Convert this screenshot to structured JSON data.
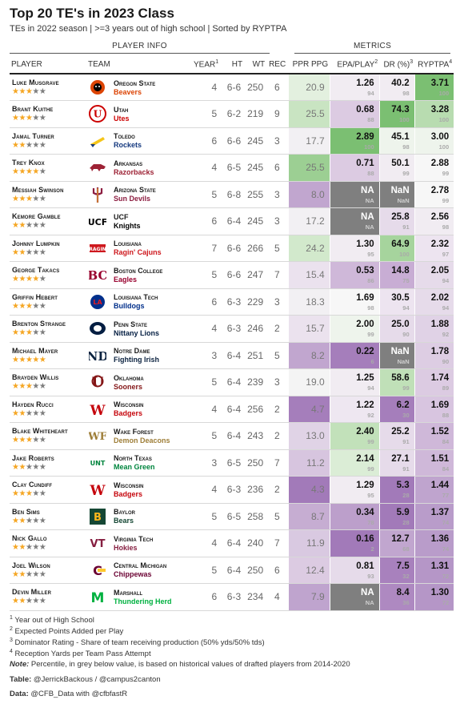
{
  "title": "Top 20 TE's in 2023 Class",
  "subtitle": "TEs in 2022 season | >=3 years out of high school | Sorted by RYPTPA",
  "spanners": {
    "player_info": "PLAYER INFO",
    "metrics": "METRICS"
  },
  "columns": {
    "player": "PLAYER",
    "team": "TEAM",
    "year": "YEAR",
    "year_sup": "1",
    "ht": "HT",
    "wt": "WT",
    "rec": "REC",
    "ppr": "PPR PPG",
    "epa": "EPA/PLAY",
    "epa_sup": "2",
    "dr": "DR (%)",
    "dr_sup": "3",
    "ryptpa": "RYPTPA",
    "ryptpa_sup": "4"
  },
  "colors": {
    "star_on": "#f5a623",
    "star_off": "#7d7d7d",
    "header_rule": "#222222",
    "na_fill": "#7f7f7f"
  },
  "players": [
    {
      "name": "Luke Musgrave",
      "stars": 3,
      "team": "Oregon State",
      "mascot": "Beavers",
      "mascot_color": "#dc4405",
      "logo": "beaver-logo",
      "logo_color": "#dc4405",
      "year": "4",
      "ht": "6-6",
      "wt": "250",
      "rec": "6",
      "ppr": "20.9",
      "ppr_bg": "#e3f0df",
      "epa": "1.26",
      "epa_p": "94",
      "epa_bg": "#f1ecf2",
      "dr": "40.2",
      "dr_p": "98",
      "dr_bg": "#f1ecf2",
      "ryptpa": "3.71",
      "ryptpa_p": "100",
      "ryptpa_bg": "#7bbf72"
    },
    {
      "name": "Brant Kuithe",
      "stars": 3,
      "team": "Utah",
      "mascot": "Utes",
      "mascot_color": "#cc0000",
      "logo": "utah-u-logo",
      "logo_color": "#cc0000",
      "year": "5",
      "ht": "6-2",
      "wt": "219",
      "rec": "9",
      "ppr": "25.5",
      "ppr_bg": "#c9e4c2",
      "epa": "0.68",
      "epa_p": "88",
      "epa_bg": "#dccbe2",
      "dr": "74.3",
      "dr_p": "100",
      "dr_bg": "#7bbf72",
      "ryptpa": "3.28",
      "ryptpa_p": "100",
      "ryptpa_bg": "#b8dcb0"
    },
    {
      "name": "Jamal Turner",
      "stars": 2,
      "team": "Toledo",
      "mascot": "Rockets",
      "mascot_color": "#15397f",
      "logo": "rocket-logo",
      "logo_color": "#f5c518",
      "year": "6",
      "ht": "6-6",
      "wt": "245",
      "rec": "3",
      "ppr": "17.7",
      "ppr_bg": "#f2f0f3",
      "epa": "2.89",
      "epa_p": "100",
      "epa_bg": "#7bbf72",
      "dr": "45.1",
      "dr_p": "98",
      "dr_bg": "#eef4ec",
      "ryptpa": "3.00",
      "ryptpa_p": "100",
      "ryptpa_bg": "#eef4ec"
    },
    {
      "name": "Trey Knox",
      "stars": 4,
      "team": "Arkansas",
      "mascot": "Razorbacks",
      "mascot_color": "#9d2235",
      "logo": "hog-logo",
      "logo_color": "#9d2235",
      "year": "4",
      "ht": "6-5",
      "wt": "245",
      "rec": "6",
      "ppr": "25.5",
      "ppr_bg": "#9ccf93",
      "epa": "0.71",
      "epa_p": "88",
      "epa_bg": "#dccbe2",
      "dr": "50.1",
      "dr_p": "99",
      "dr_bg": "#f1ecf2",
      "ryptpa": "2.88",
      "ryptpa_p": "99",
      "ryptpa_bg": "#f7f7f7"
    },
    {
      "name": "Messiah Swinson",
      "stars": 3,
      "team": "Arizona State",
      "mascot": "Sun Devils",
      "mascot_color": "#8c1d40",
      "logo": "pitchfork-logo",
      "logo_color": "#8c1d40",
      "year": "5",
      "ht": "6-8",
      "wt": "255",
      "rec": "3",
      "ppr": "8.0",
      "ppr_bg": "#c1a6cf",
      "epa": "NA",
      "epa_p": "NA",
      "epa_bg": "#7f7f7f",
      "dr": "NaN",
      "dr_p": "NaN",
      "dr_bg": "#7f7f7f",
      "ryptpa": "2.78",
      "ryptpa_p": "99",
      "ryptpa_bg": "#f7f7f7"
    },
    {
      "name": "Kemore Gamble",
      "stars": 2,
      "team": "UCF",
      "mascot": "Knights",
      "mascot_color": "#000000",
      "logo": "ucf-logo",
      "logo_color": "#b89a52",
      "year": "6",
      "ht": "6-4",
      "wt": "245",
      "rec": "3",
      "ppr": "17.2",
      "ppr_bg": "#f2f0f3",
      "epa": "NA",
      "epa_p": "NA",
      "epa_bg": "#7f7f7f",
      "dr": "25.8",
      "dr_p": "91",
      "dr_bg": "#e6dbea",
      "ryptpa": "2.56",
      "ryptpa_p": "98",
      "ryptpa_bg": "#f1ecf2"
    },
    {
      "name": "Johnny Lumpkin",
      "stars": 2,
      "team": "Louisiana",
      "mascot": "Ragin' Cajuns",
      "mascot_color": "#ce181e",
      "logo": "cajuns-logo",
      "logo_color": "#ce181e",
      "year": "7",
      "ht": "6-6",
      "wt": "266",
      "rec": "5",
      "ppr": "24.2",
      "ppr_bg": "#d2e9cc",
      "epa": "1.30",
      "epa_p": "95",
      "epa_bg": "#f1ecf2",
      "dr": "64.9",
      "dr_p": "100",
      "dr_bg": "#a6d49d",
      "ryptpa": "2.32",
      "ryptpa_p": "97",
      "ryptpa_bg": "#ede4f0"
    },
    {
      "name": "George Takacs",
      "stars": 4,
      "team": "Boston College",
      "mascot": "Eagles",
      "mascot_color": "#98002e",
      "logo": "bc-logo",
      "logo_color": "#98002e",
      "year": "5",
      "ht": "6-6",
      "wt": "247",
      "rec": "7",
      "ppr": "15.4",
      "ppr_bg": "#ebe2ee",
      "epa": "0.53",
      "epa_p": "86",
      "epa_bg": "#cfb8d9",
      "dr": "14.8",
      "dr_p": "75",
      "dr_bg": "#c8add4",
      "ryptpa": "2.05",
      "ryptpa_p": "94",
      "ryptpa_bg": "#e6dbea"
    },
    {
      "name": "Griffin Hebert",
      "stars": 3,
      "team": "Louisiana Tech",
      "mascot": "Bulldogs",
      "mascot_color": "#002f8b",
      "logo": "latech-logo",
      "logo_color": "#002f8b",
      "year": "6",
      "ht": "6-3",
      "wt": "229",
      "rec": "3",
      "ppr": "18.3",
      "ppr_bg": "#f2f0f3",
      "epa": "1.69",
      "epa_p": "98",
      "epa_bg": "#f7f7f7",
      "dr": "30.5",
      "dr_p": "94",
      "dr_bg": "#ede4f0",
      "ryptpa": "2.02",
      "ryptpa_p": "94",
      "ryptpa_bg": "#e6dbea"
    },
    {
      "name": "Brenton Strange",
      "stars": 3,
      "team": "Penn State",
      "mascot": "Nittany Lions",
      "mascot_color": "#041e42",
      "logo": "lion-logo",
      "logo_color": "#041e42",
      "year": "4",
      "ht": "6-3",
      "wt": "246",
      "rec": "2",
      "ppr": "15.7",
      "ppr_bg": "#ebe2ee",
      "epa": "2.00",
      "epa_p": "99",
      "epa_bg": "#eef4ec",
      "dr": "25.0",
      "dr_p": "90",
      "dr_bg": "#e6dbea",
      "ryptpa": "1.88",
      "ryptpa_p": "92",
      "ryptpa_bg": "#e0d2e6"
    },
    {
      "name": "Michael Mayer",
      "stars": 5,
      "team": "Notre Dame",
      "mascot": "Fighting Irish",
      "mascot_color": "#0c2340",
      "logo": "nd-logo",
      "logo_color": "#0c2340",
      "year": "3",
      "ht": "6-4",
      "wt": "251",
      "rec": "5",
      "ppr": "8.2",
      "ppr_bg": "#c1a6cf",
      "epa": "0.22",
      "epa_p": "6",
      "epa_bg": "#a57ebb",
      "dr": "NaN",
      "dr_p": "NaN",
      "dr_bg": "#7f7f7f",
      "ryptpa": "1.78",
      "ryptpa_p": "90",
      "ryptpa_bg": "#ddcde3"
    },
    {
      "name": "Brayden Willis",
      "stars": 3,
      "team": "Oklahoma",
      "mascot": "Sooners",
      "mascot_color": "#841617",
      "logo": "ou-logo",
      "logo_color": "#841617",
      "year": "5",
      "ht": "6-4",
      "wt": "239",
      "rec": "3",
      "ppr": "19.0",
      "ppr_bg": "#f4f4f4",
      "epa": "1.25",
      "epa_p": "94",
      "epa_bg": "#f1ecf2",
      "dr": "58.6",
      "dr_p": "99",
      "dr_bg": "#c0e0b8",
      "ryptpa": "1.74",
      "ryptpa_p": "89",
      "ryptpa_bg": "#dccbe2"
    },
    {
      "name": "Hayden Rucci",
      "stars": 2,
      "team": "Wisconsin",
      "mascot": "Badgers",
      "mascot_color": "#c5050c",
      "logo": "wis-logo",
      "logo_color": "#c5050c",
      "year": "4",
      "ht": "6-4",
      "wt": "256",
      "rec": "2",
      "ppr": "4.7",
      "ppr_bg": "#a57ebb",
      "epa": "1.22",
      "epa_p": "92",
      "epa_bg": "#eee7f1",
      "dr": "6.2",
      "dr_p": "30",
      "dr_bg": "#a57ebb",
      "ryptpa": "1.69",
      "ryptpa_p": "88",
      "ryptpa_bg": "#d8c5e0"
    },
    {
      "name": "Blake Whiteheart",
      "stars": 3,
      "team": "Wake Forest",
      "mascot": "Demon Deacons",
      "mascot_color": "#9e7e38",
      "logo": "wf-logo",
      "logo_color": "#000000",
      "year": "5",
      "ht": "6-4",
      "wt": "243",
      "rec": "2",
      "ppr": "13.0",
      "ppr_bg": "#e0d3e6",
      "epa": "2.40",
      "epa_p": "99",
      "epa_bg": "#c2e1ba",
      "dr": "25.2",
      "dr_p": "91",
      "dr_bg": "#e6dbea",
      "ryptpa": "1.52",
      "ryptpa_p": "84",
      "ryptpa_bg": "#cfb8d9"
    },
    {
      "name": "Jake Roberts",
      "stars": 2,
      "team": "North Texas",
      "mascot": "Mean Green",
      "mascot_color": "#00853e",
      "logo": "unt-logo",
      "logo_color": "#00853e",
      "year": "3",
      "ht": "6-5",
      "wt": "250",
      "rec": "7",
      "ppr": "11.2",
      "ppr_bg": "#d7c5df",
      "epa": "2.14",
      "epa_p": "99",
      "epa_bg": "#dbedd6",
      "dr": "27.1",
      "dr_p": "91",
      "dr_bg": "#e6dbea",
      "ryptpa": "1.51",
      "ryptpa_p": "84",
      "ryptpa_bg": "#cfb8d9"
    },
    {
      "name": "Clay Cundiff",
      "stars": 3,
      "team": "Wisconsin",
      "mascot": "Badgers",
      "mascot_color": "#c5050c",
      "logo": "wis-logo",
      "logo_color": "#c5050c",
      "year": "4",
      "ht": "6-3",
      "wt": "236",
      "rec": "2",
      "ppr": "4.3",
      "ppr_bg": "#a27ab9",
      "epa": "1.29",
      "epa_p": "95",
      "epa_bg": "#f1ecf2",
      "dr": "5.3",
      "dr_p": "28",
      "dr_bg": "#a27ab9",
      "ryptpa": "1.44",
      "ryptpa_p": "77",
      "ryptpa_bg": "#bfa4ce"
    },
    {
      "name": "Ben Sims",
      "stars": 2,
      "team": "Baylor",
      "mascot": "Bears",
      "mascot_color": "#154734",
      "logo": "baylor-logo",
      "logo_color": "#154734",
      "year": "5",
      "ht": "6-5",
      "wt": "258",
      "rec": "5",
      "ppr": "8.7",
      "ppr_bg": "#c6adD2",
      "epa": "0.34",
      "epa_p": "78",
      "epa_bg": "#bc9fcb",
      "dr": "5.9",
      "dr_p": "28",
      "dr_bg": "#a27ab9",
      "ryptpa": "1.37",
      "ryptpa_p": "74",
      "ryptpa_bg": "#b99cca"
    },
    {
      "name": "Nick Gallo",
      "stars": 2,
      "team": "Virginia Tech",
      "mascot": "Hokies",
      "mascot_color": "#861f41",
      "logo": "vt-logo",
      "logo_color": "#861f41",
      "year": "4",
      "ht": "6-4",
      "wt": "240",
      "rec": "7",
      "ppr": "11.9",
      "ppr_bg": "#d9c9e1",
      "epa": "0.16",
      "epa_p": "2",
      "epa_bg": "#a27ab9",
      "dr": "12.7",
      "dr_p": "68",
      "dr_bg": "#c1a6cf",
      "ryptpa": "1.36",
      "ryptpa_p": "74",
      "ryptpa_bg": "#b99cca"
    },
    {
      "name": "Joel Wilson",
      "stars": 2,
      "team": "Central Michigan",
      "mascot": "Chippewas",
      "mascot_color": "#6a0032",
      "logo": "cmu-logo",
      "logo_color": "#6a0032",
      "year": "5",
      "ht": "6-4",
      "wt": "250",
      "rec": "6",
      "ppr": "12.4",
      "ppr_bg": "#dccbe2",
      "epa": "0.81",
      "epa_p": "93",
      "epa_bg": "#e6dbea",
      "dr": "7.5",
      "dr_p": "32",
      "dr_bg": "#a881bd",
      "ryptpa": "1.31",
      "ryptpa_p": "72",
      "ryptpa_bg": "#b596c7"
    },
    {
      "name": "Devin Miller",
      "stars": 2,
      "team": "Marshall",
      "mascot": "Thundering Herd",
      "mascot_color": "#00b140",
      "logo": "marshall-logo",
      "logo_color": "#00b140",
      "year": "6",
      "ht": "6-3",
      "wt": "234",
      "rec": "4",
      "ppr": "7.9",
      "ppr_bg": "#bfa4ce",
      "epa": "NA",
      "epa_p": "NA",
      "epa_bg": "#7f7f7f",
      "dr": "8.4",
      "dr_p": "36",
      "dr_bg": "#ae89c1",
      "ryptpa": "1.30",
      "ryptpa_p": "72",
      "ryptpa_bg": "#b596c7"
    }
  ],
  "footnotes": {
    "f1_sup": "1",
    "f1": "Year out of High School",
    "f2_sup": "2",
    "f2": "Expected Points Added per Play",
    "f3_sup": "3",
    "f3": "Dominator Rating - Share of team receiving production (50% yds/50% tds)",
    "f4_sup": "4",
    "f4": "Reception Yards per Team Pass Attempt",
    "note_label": "Note:",
    "note": "Percentile, in grey below value, is based on historical values of drafted players from 2014-2020",
    "table_label": "Table:",
    "table": "@JerrickBackous / @campus2canton",
    "data_label": "Data:",
    "data": "@CFB_Data with @cfbfastR"
  }
}
